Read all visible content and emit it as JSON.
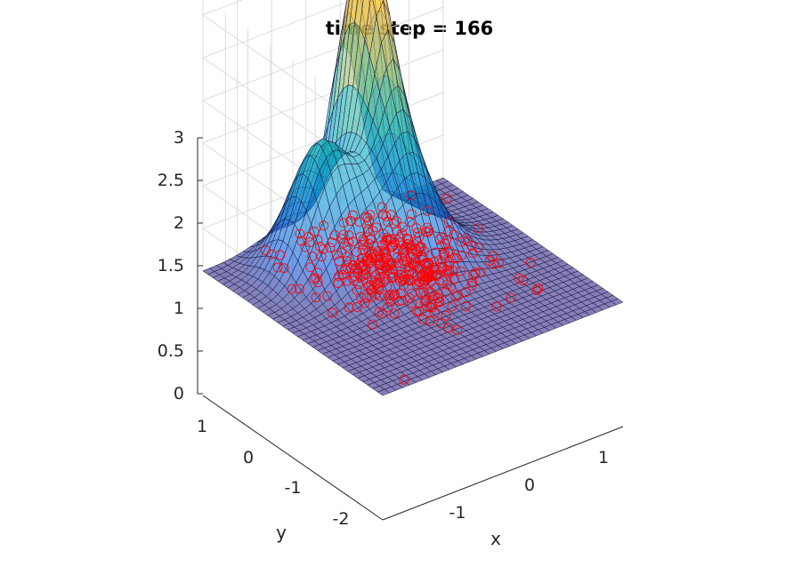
{
  "chart_data": {
    "type": "surface",
    "title": "time step = 166",
    "xlabel": "x",
    "ylabel": "y",
    "zlabel": "",
    "xlim": [
      -2,
      1.5
    ],
    "ylim": [
      -2.5,
      1.5
    ],
    "zlim": [
      0,
      3
    ],
    "x_ticks": [
      "-1",
      "0",
      "1"
    ],
    "y_ticks": [
      "1",
      "0",
      "-1",
      "-2"
    ],
    "z_ticks": [
      "0",
      "0.5",
      "1",
      "1.5",
      "2",
      "2.5",
      "3"
    ],
    "grid": true,
    "colormap": "parula",
    "surface": {
      "description_values": "peak height approx. 3.3 near x=0, y=1; broad ridge approx. 1.5 near x=-1, y=0.5; flat near 0 elsewhere",
      "peaks": [
        {
          "x": 0.05,
          "y": 1.0,
          "z": 3.3
        },
        {
          "x": -0.9,
          "y": 0.6,
          "z": 1.45
        },
        {
          "x": -0.2,
          "y": 0.0,
          "z": 1.0
        }
      ]
    },
    "scatter": {
      "marker": "circle",
      "color": "#ff0000",
      "z": 0
    }
  }
}
